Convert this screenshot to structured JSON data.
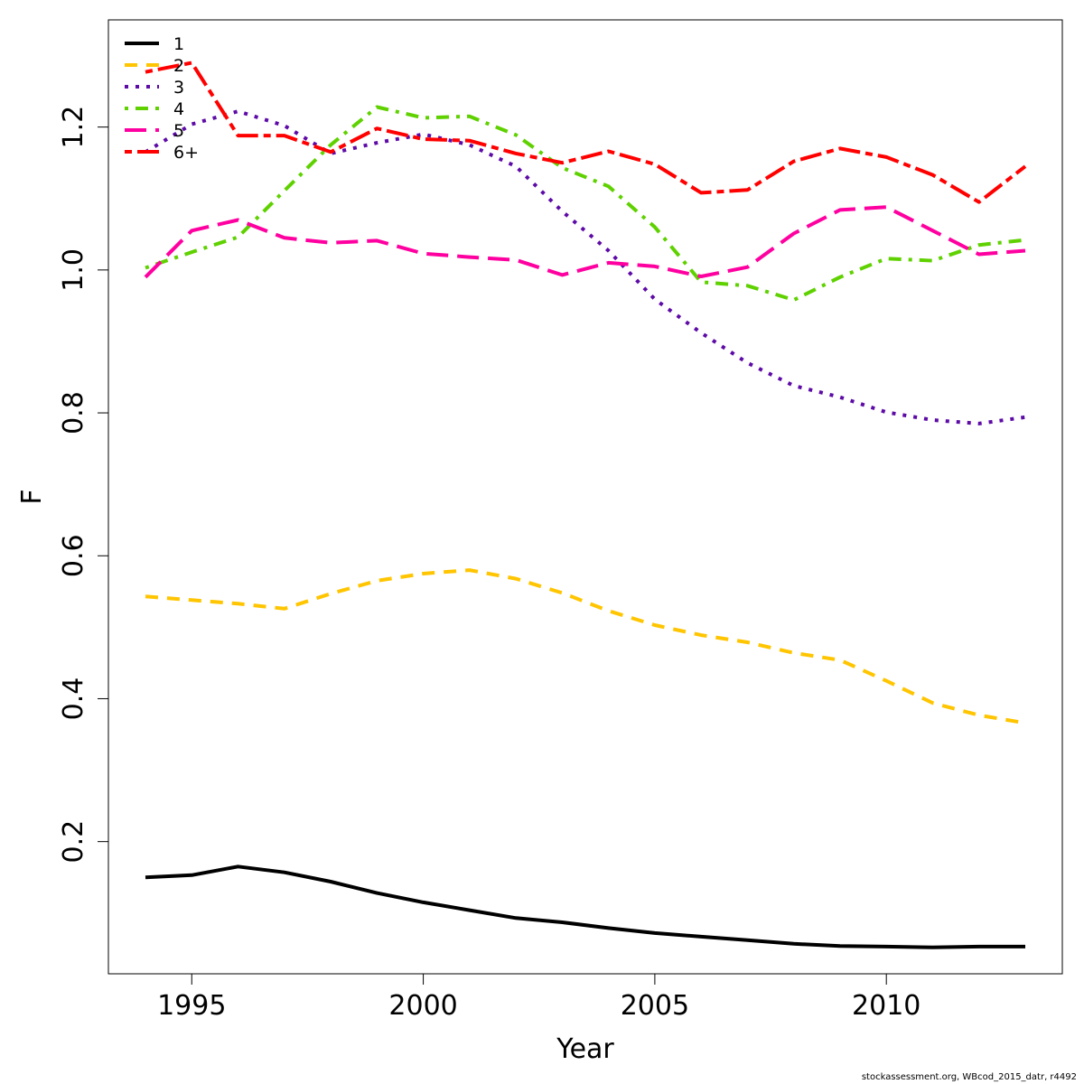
{
  "chart_data": {
    "type": "line",
    "title": "",
    "xlabel": "Year",
    "ylabel": "F",
    "xlim": [
      1993.2,
      2013.8
    ],
    "ylim": [
      0.015,
      1.35
    ],
    "x_ticks": [
      1995,
      2000,
      2005,
      2010
    ],
    "y_ticks": [
      0.2,
      0.4,
      0.6,
      0.8,
      1.0,
      1.2
    ],
    "y_tick_labels": [
      "0.2",
      "0.4",
      "0.6",
      "0.8",
      "1.0",
      "1.2"
    ],
    "grid": false,
    "legend_position": "top-left",
    "x": [
      1994,
      1995,
      1996,
      1997,
      1998,
      1999,
      2000,
      2001,
      2002,
      2003,
      2004,
      2005,
      2006,
      2007,
      2008,
      2009,
      2010,
      2011,
      2012,
      2013
    ],
    "series": [
      {
        "name": "1",
        "color": "#000000",
        "dash": "solid",
        "values": [
          0.15,
          0.153,
          0.165,
          0.157,
          0.144,
          0.128,
          0.115,
          0.104,
          0.093,
          0.087,
          0.079,
          0.072,
          0.067,
          0.062,
          0.057,
          0.054,
          0.053,
          0.052,
          0.053,
          0.053
        ]
      },
      {
        "name": "2",
        "color": "#ffc500",
        "dash": "dashed",
        "values": [
          0.543,
          0.538,
          0.533,
          0.526,
          0.547,
          0.565,
          0.575,
          0.58,
          0.568,
          0.548,
          0.523,
          0.503,
          0.489,
          0.479,
          0.464,
          0.454,
          0.425,
          0.394,
          0.377,
          0.366
        ]
      },
      {
        "name": "3",
        "color": "#5d0aa6",
        "dash": "dotted",
        "values": [
          1.165,
          1.204,
          1.222,
          1.202,
          1.163,
          1.178,
          1.19,
          1.175,
          1.145,
          1.082,
          1.027,
          0.959,
          0.912,
          0.87,
          0.838,
          0.822,
          0.801,
          0.79,
          0.785,
          0.794
        ]
      },
      {
        "name": "4",
        "color": "#5fd100",
        "dash": "dotdash",
        "values": [
          1.003,
          1.025,
          1.046,
          1.111,
          1.175,
          1.228,
          1.213,
          1.215,
          1.189,
          1.143,
          1.117,
          1.06,
          0.983,
          0.978,
          0.958,
          0.99,
          1.016,
          1.013,
          1.035,
          1.042
        ]
      },
      {
        "name": "5",
        "color": "#ff00a0",
        "dash": "longdash",
        "values": [
          0.99,
          1.055,
          1.07,
          1.045,
          1.038,
          1.041,
          1.023,
          1.018,
          1.014,
          0.993,
          1.01,
          1.005,
          0.991,
          1.004,
          1.051,
          1.084,
          1.088,
          1.055,
          1.022,
          1.027
        ]
      },
      {
        "name": "6+",
        "color": "#ff0000",
        "dash": "twodash",
        "values": [
          1.277,
          1.29,
          1.188,
          1.188,
          1.165,
          1.198,
          1.183,
          1.181,
          1.163,
          1.15,
          1.166,
          1.148,
          1.108,
          1.112,
          1.152,
          1.17,
          1.158,
          1.133,
          1.095,
          1.145
        ]
      }
    ]
  },
  "footer": "stockassessment.org, WBcod_2015_datr, r4492"
}
